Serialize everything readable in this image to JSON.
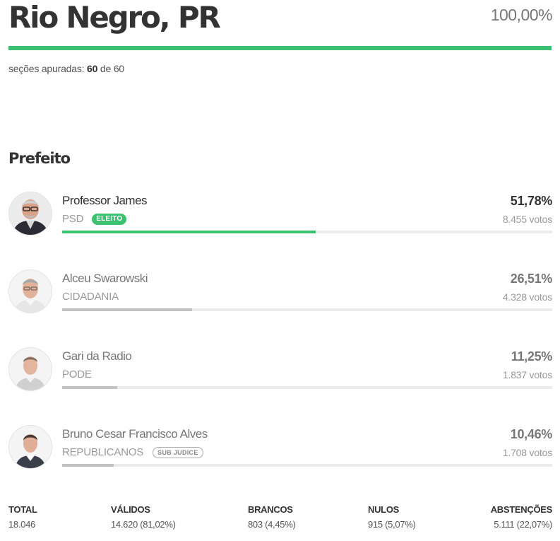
{
  "header": {
    "city": "Rio Negro, PR",
    "overall_percent": "100,00%",
    "progress_fraction": 1.0,
    "sections_label": "seções apuradas:",
    "sections_done": "60",
    "sections_sep": "de",
    "sections_total": "60"
  },
  "office": "Prefeito",
  "candidates": [
    {
      "name": "Professor James",
      "party": "PSD",
      "badge": "ELEITO",
      "percent": "51,78%",
      "votes": "8.455 votos",
      "share": 51.78
    },
    {
      "name": "Alceu Swarowski",
      "party": "CIDADANIA",
      "badge": "",
      "percent": "26,51%",
      "votes": "4.328 votos",
      "share": 26.51
    },
    {
      "name": "Gari da Radio",
      "party": "PODE",
      "badge": "",
      "percent": "11,25%",
      "votes": "1.837 votos",
      "share": 11.25
    },
    {
      "name": "Bruno Cesar Francisco Alves",
      "party": "REPUBLICANOS",
      "badge": "SUB JUDICE",
      "percent": "10,46%",
      "votes": "1.708 votos",
      "share": 10.46
    }
  ],
  "summary": {
    "total": {
      "label": "TOTAL",
      "value": "18.046"
    },
    "validos": {
      "label": "VÁLIDOS",
      "value": "14.620 (81,02%)"
    },
    "brancos": {
      "label": "BRANCOS",
      "value": "803 (4,45%)"
    },
    "nulos": {
      "label": "NULOS",
      "value": "915 (5,07%)"
    },
    "abstencoes": {
      "label": "ABSTENÇÕES",
      "value": "5.111 (22,07%)"
    }
  },
  "colors": {
    "accent_green": "#3bc16f",
    "bar_gray": "#c2c2c2",
    "track": "#ececec"
  }
}
